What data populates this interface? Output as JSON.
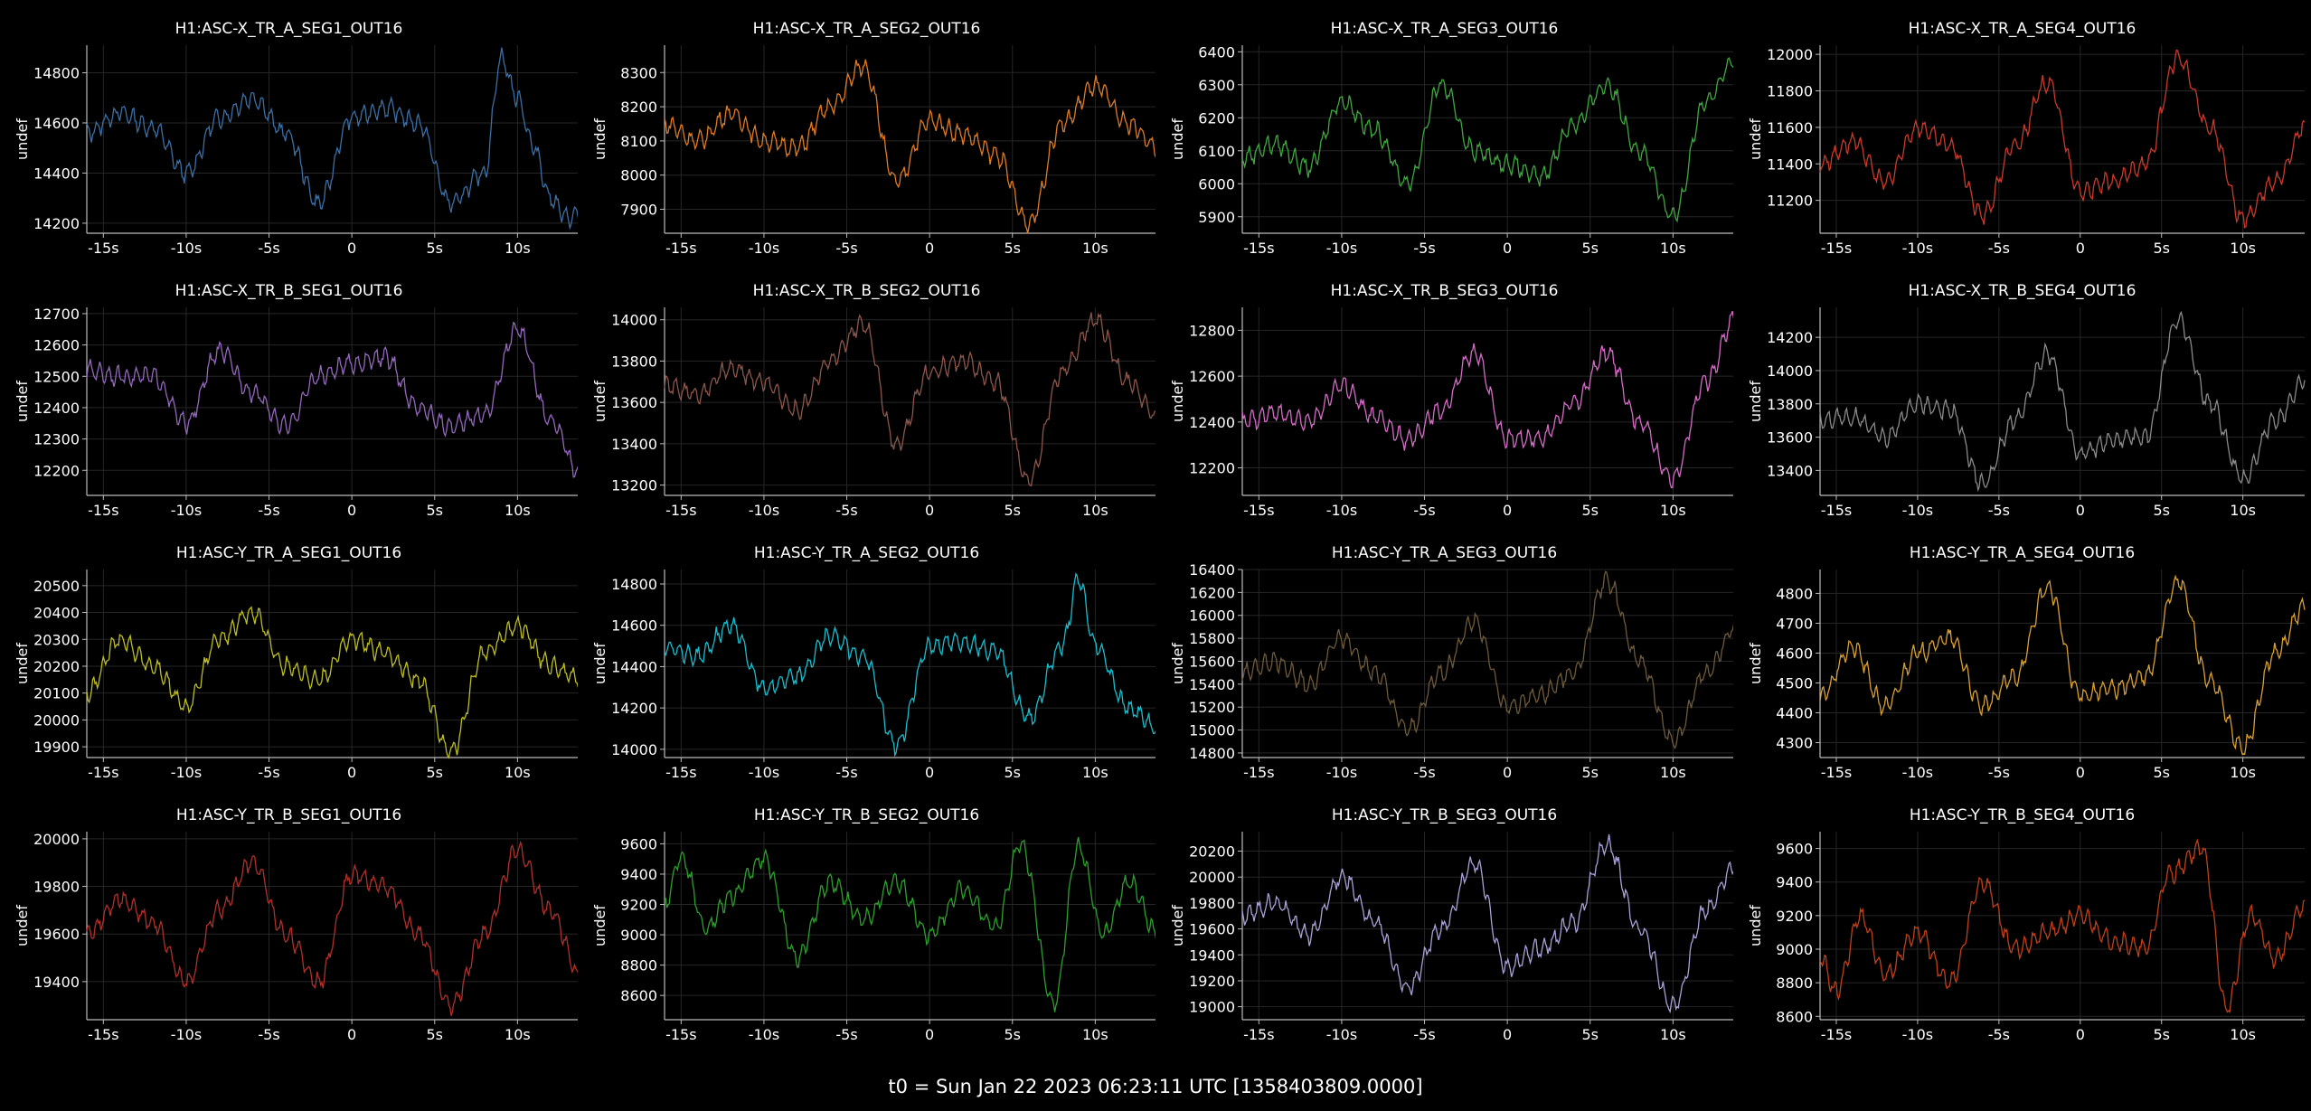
{
  "footer": "t0 = Sun Jan 22 2023 06:23:11 UTC [1358403809.0000]",
  "chart_data": [
    {
      "type": "line",
      "title": "H1:ASC-X_TR_A_SEG1_OUT16",
      "ylabel": "undef",
      "color": "#3b6fa5",
      "xlim": [
        -16,
        13.8
      ],
      "ylim": [
        14160,
        14910
      ],
      "yticks": [
        14200,
        14400,
        14600,
        14800
      ],
      "xticks": [
        "-15s",
        "-10s",
        "-5s",
        "0",
        "5s",
        "10s"
      ],
      "series": [
        {
          "x": [
            -16,
            -14,
            -12,
            -10,
            -8,
            -6,
            -4,
            -2,
            0,
            2,
            4,
            6,
            8,
            9,
            10,
            11,
            12,
            13,
            13.8
          ],
          "y": [
            14560,
            14640,
            14580,
            14400,
            14620,
            14700,
            14560,
            14280,
            14620,
            14660,
            14600,
            14280,
            14400,
            14860,
            14700,
            14500,
            14300,
            14220,
            14240
          ]
        }
      ]
    },
    {
      "type": "line",
      "title": "H1:ASC-X_TR_A_SEG2_OUT16",
      "ylabel": "undef",
      "color": "#e07b22",
      "xlim": [
        -16,
        13.8
      ],
      "ylim": [
        7830,
        8380
      ],
      "yticks": [
        7900,
        8000,
        8100,
        8200,
        8300
      ],
      "xticks": [
        "-15s",
        "-10s",
        "-5s",
        "0",
        "5s",
        "10s"
      ],
      "series": [
        {
          "x": [
            -16,
            -14,
            -12,
            -10,
            -8,
            -6,
            -4,
            -2,
            0,
            2,
            4,
            6,
            8,
            10,
            12,
            13.8
          ],
          "y": [
            8150,
            8100,
            8180,
            8100,
            8080,
            8200,
            8320,
            7980,
            8160,
            8120,
            8060,
            7860,
            8150,
            8260,
            8150,
            8080
          ]
        }
      ]
    },
    {
      "type": "line",
      "title": "H1:ASC-X_TR_A_SEG3_OUT16",
      "ylabel": "undef",
      "color": "#3fa83f",
      "xlim": [
        -16,
        13.8
      ],
      "ylim": [
        5850,
        6420
      ],
      "yticks": [
        5900,
        6000,
        6100,
        6200,
        6300,
        6400
      ],
      "xticks": [
        "-15s",
        "-10s",
        "-5s",
        "0",
        "5s",
        "10s"
      ],
      "series": [
        {
          "x": [
            -16,
            -14,
            -12,
            -10,
            -8,
            -6,
            -4,
            -2,
            0,
            2,
            4,
            6,
            8,
            10,
            12,
            13.8
          ],
          "y": [
            6080,
            6120,
            6050,
            6250,
            6160,
            6000,
            6300,
            6100,
            6060,
            6020,
            6180,
            6300,
            6100,
            5900,
            6250,
            6380
          ]
        }
      ]
    },
    {
      "type": "line",
      "title": "H1:ASC-X_TR_A_SEG4_OUT16",
      "ylabel": "undef",
      "color": "#c83a2c",
      "xlim": [
        -16,
        13.8
      ],
      "ylim": [
        11020,
        12050
      ],
      "yticks": [
        11200,
        11400,
        11600,
        11800,
        12000
      ],
      "xticks": [
        "-15s",
        "-10s",
        "-5s",
        "0",
        "5s",
        "10s"
      ],
      "series": [
        {
          "x": [
            -16,
            -14,
            -12,
            -10,
            -8,
            -6,
            -4,
            -2,
            0,
            2,
            4,
            6,
            8,
            10,
            12,
            13.8
          ],
          "y": [
            11400,
            11520,
            11300,
            11600,
            11500,
            11120,
            11500,
            11850,
            11250,
            11300,
            11400,
            11980,
            11600,
            11100,
            11300,
            11600
          ]
        }
      ]
    },
    {
      "type": "line",
      "title": "H1:ASC-X_TR_B_SEG1_OUT16",
      "ylabel": "undef",
      "color": "#9467bd",
      "xlim": [
        -16,
        13.8
      ],
      "ylim": [
        12120,
        12720
      ],
      "yticks": [
        12200,
        12300,
        12400,
        12500,
        12600,
        12700
      ],
      "xticks": [
        "-15s",
        "-10s",
        "-5s",
        "0",
        "5s",
        "10s"
      ],
      "series": [
        {
          "x": [
            -16,
            -14,
            -12,
            -10,
            -8,
            -6,
            -4,
            -2,
            0,
            2,
            4,
            6,
            8,
            10,
            12,
            13.8
          ],
          "y": [
            12520,
            12500,
            12500,
            12350,
            12580,
            12450,
            12340,
            12500,
            12540,
            12560,
            12400,
            12340,
            12380,
            12650,
            12360,
            12180
          ]
        }
      ]
    },
    {
      "type": "line",
      "title": "H1:ASC-X_TR_B_SEG2_OUT16",
      "ylabel": "undef",
      "color": "#8c564b",
      "xlim": [
        -16,
        13.8
      ],
      "ylim": [
        13150,
        14060
      ],
      "yticks": [
        13200,
        13400,
        13600,
        13800,
        14000
      ],
      "xticks": [
        "-15s",
        "-10s",
        "-5s",
        "0",
        "5s",
        "10s"
      ],
      "series": [
        {
          "x": [
            -16,
            -14,
            -12,
            -10,
            -8,
            -6,
            -4,
            -2,
            0,
            2,
            4,
            6,
            8,
            10,
            12,
            13.8
          ],
          "y": [
            13680,
            13640,
            13760,
            13700,
            13560,
            13800,
            13980,
            13400,
            13750,
            13800,
            13700,
            13220,
            13750,
            14000,
            13700,
            13520
          ]
        }
      ]
    },
    {
      "type": "line",
      "title": "H1:ASC-X_TR_B_SEG3_OUT16",
      "ylabel": "undef",
      "color": "#d56bc7",
      "xlim": [
        -16,
        13.8
      ],
      "ylim": [
        12080,
        12900
      ],
      "yticks": [
        12200,
        12400,
        12600,
        12800
      ],
      "xticks": [
        "-15s",
        "-10s",
        "-5s",
        "0",
        "5s",
        "10s"
      ],
      "series": [
        {
          "x": [
            -16,
            -14,
            -12,
            -10,
            -8,
            -6,
            -4,
            -2,
            0,
            2,
            4,
            6,
            8,
            10,
            12,
            13.8
          ],
          "y": [
            12400,
            12440,
            12400,
            12560,
            12420,
            12320,
            12450,
            12700,
            12330,
            12330,
            12480,
            12700,
            12400,
            12150,
            12580,
            12860
          ]
        }
      ]
    },
    {
      "type": "line",
      "title": "H1:ASC-X_TR_B_SEG4_OUT16",
      "ylabel": "undef",
      "color": "#8a8a8a",
      "xlim": [
        -16,
        13.8
      ],
      "ylim": [
        13250,
        14380
      ],
      "yticks": [
        13400,
        13600,
        13800,
        14000,
        14200
      ],
      "xticks": [
        "-15s",
        "-10s",
        "-5s",
        "0",
        "5s",
        "10s"
      ],
      "series": [
        {
          "x": [
            -16,
            -14,
            -12,
            -10,
            -8,
            -6,
            -4,
            -2,
            0,
            2,
            4,
            6,
            8,
            10,
            12,
            13.8
          ],
          "y": [
            13700,
            13720,
            13600,
            13800,
            13760,
            13320,
            13700,
            14100,
            13500,
            13580,
            13600,
            14300,
            13800,
            13350,
            13700,
            13940
          ]
        }
      ]
    },
    {
      "type": "line",
      "title": "H1:ASC-Y_TR_A_SEG1_OUT16",
      "ylabel": "undef",
      "color": "#bcbd22",
      "xlim": [
        -16,
        13.8
      ],
      "ylim": [
        19860,
        20560
      ],
      "yticks": [
        19900,
        20000,
        20100,
        20200,
        20300,
        20400,
        20500
      ],
      "xticks": [
        "-15s",
        "-10s",
        "-5s",
        "0",
        "5s",
        "10s"
      ],
      "series": [
        {
          "x": [
            -16,
            -14,
            -12,
            -10,
            -8,
            -6,
            -4,
            -2,
            0,
            2,
            4,
            6,
            8,
            10,
            12,
            13.8
          ],
          "y": [
            20100,
            20300,
            20200,
            20050,
            20300,
            20400,
            20200,
            20150,
            20300,
            20250,
            20150,
            19880,
            20250,
            20350,
            20200,
            20150
          ]
        }
      ]
    },
    {
      "type": "line",
      "title": "H1:ASC-Y_TR_A_SEG2_OUT16",
      "ylabel": "undef",
      "color": "#17becf",
      "xlim": [
        -16,
        13.8
      ],
      "ylim": [
        13960,
        14870
      ],
      "yticks": [
        14000,
        14200,
        14400,
        14600,
        14800
      ],
      "xticks": [
        "-15s",
        "-10s",
        "-5s",
        "0",
        "5s",
        "10s"
      ],
      "series": [
        {
          "x": [
            -16,
            -14,
            -12,
            -10,
            -8,
            -6,
            -4,
            -2,
            0,
            2,
            4,
            6,
            8,
            9,
            10,
            12,
            13.8
          ],
          "y": [
            14500,
            14450,
            14600,
            14300,
            14350,
            14550,
            14450,
            14020,
            14500,
            14520,
            14480,
            14150,
            14500,
            14820,
            14500,
            14200,
            14100
          ]
        }
      ]
    },
    {
      "type": "line",
      "title": "H1:ASC-Y_TR_A_SEG3_OUT16",
      "ylabel": "undef",
      "color": "#6e5a3a",
      "xlim": [
        -16,
        13.8
      ],
      "ylim": [
        14760,
        16400
      ],
      "yticks": [
        14800,
        15000,
        15200,
        15400,
        15600,
        15800,
        16000,
        16200,
        16400
      ],
      "xticks": [
        "-15s",
        "-10s",
        "-5s",
        "0",
        "5s",
        "10s"
      ],
      "series": [
        {
          "x": [
            -16,
            -14,
            -12,
            -10,
            -8,
            -6,
            -4,
            -2,
            0,
            2,
            4,
            6,
            8,
            10,
            12,
            13.8
          ],
          "y": [
            15500,
            15600,
            15400,
            15800,
            15500,
            15000,
            15500,
            15950,
            15200,
            15300,
            15500,
            16300,
            15600,
            14900,
            15500,
            15900
          ]
        }
      ]
    },
    {
      "type": "line",
      "title": "H1:ASC-Y_TR_A_SEG4_OUT16",
      "ylabel": "undef",
      "color": "#d9a030",
      "xlim": [
        -16,
        13.8
      ],
      "ylim": [
        4250,
        4880
      ],
      "yticks": [
        4300,
        4400,
        4500,
        4600,
        4700,
        4800
      ],
      "xticks": [
        "-15s",
        "-10s",
        "-5s",
        "0",
        "5s",
        "10s"
      ],
      "series": [
        {
          "x": [
            -16,
            -14,
            -12,
            -10,
            -8,
            -6,
            -4,
            -2,
            0,
            2,
            4,
            6,
            8,
            10,
            12,
            13.8
          ],
          "y": [
            4450,
            4620,
            4420,
            4600,
            4650,
            4420,
            4520,
            4820,
            4460,
            4480,
            4520,
            4840,
            4500,
            4280,
            4600,
            4750
          ]
        }
      ]
    },
    {
      "type": "line",
      "title": "H1:ASC-Y_TR_B_SEG1_OUT16",
      "ylabel": "undef",
      "color": "#b0302a",
      "xlim": [
        -16,
        13.8
      ],
      "ylim": [
        19240,
        20030
      ],
      "yticks": [
        19400,
        19600,
        19800,
        20000
      ],
      "xticks": [
        "-15s",
        "-10s",
        "-5s",
        "0",
        "5s",
        "10s"
      ],
      "series": [
        {
          "x": [
            -16,
            -14,
            -12,
            -10,
            -8,
            -6,
            -4,
            -2,
            0,
            2,
            4,
            6,
            8,
            10,
            12,
            13.8
          ],
          "y": [
            19600,
            19750,
            19650,
            19400,
            19700,
            19900,
            19600,
            19400,
            19850,
            19800,
            19600,
            19300,
            19600,
            19950,
            19700,
            19420
          ]
        }
      ]
    },
    {
      "type": "line",
      "title": "H1:ASC-Y_TR_B_SEG2_OUT16",
      "ylabel": "undef",
      "color": "#2ca02c",
      "xlim": [
        -16,
        13.8
      ],
      "ylim": [
        8440,
        9680
      ],
      "yticks": [
        8600,
        8800,
        9000,
        9200,
        9400,
        9600
      ],
      "xticks": [
        "-15s",
        "-10s",
        "-5s",
        "0",
        "5s",
        "10s"
      ],
      "series": [
        {
          "x": [
            -16,
            -15,
            -13.5,
            -12,
            -10,
            -8,
            -6,
            -4,
            -2,
            0,
            2,
            4,
            5.5,
            7.5,
            9,
            10.5,
            12,
            13.8
          ],
          "y": [
            9200,
            9520,
            9050,
            9250,
            9500,
            8850,
            9350,
            9100,
            9350,
            9000,
            9300,
            9050,
            9600,
            8550,
            9580,
            9000,
            9350,
            9000
          ]
        }
      ]
    },
    {
      "type": "line",
      "title": "H1:ASC-Y_TR_B_SEG3_OUT16",
      "ylabel": "undef",
      "color": "#aaa0d8",
      "xlim": [
        -16,
        13.8
      ],
      "ylim": [
        18900,
        20350
      ],
      "yticks": [
        19000,
        19200,
        19400,
        19600,
        19800,
        20000,
        20200
      ],
      "xticks": [
        "-15s",
        "-10s",
        "-5s",
        "0",
        "5s",
        "10s"
      ],
      "series": [
        {
          "x": [
            -16,
            -14,
            -12,
            -10,
            -8,
            -6,
            -4,
            -2,
            0,
            2,
            4,
            6,
            8,
            10,
            12,
            13.8
          ],
          "y": [
            19700,
            19800,
            19550,
            20000,
            19650,
            19150,
            19600,
            20100,
            19300,
            19450,
            19650,
            20250,
            19600,
            19000,
            19750,
            20100
          ]
        }
      ]
    },
    {
      "type": "line",
      "title": "H1:ASC-Y_TR_B_SEG4_OUT16",
      "ylabel": "undef",
      "color": "#c0401a",
      "xlim": [
        -16,
        13.8
      ],
      "ylim": [
        8580,
        9700
      ],
      "yticks": [
        8600,
        8800,
        9000,
        9200,
        9400,
        9600
      ],
      "xticks": [
        "-15s",
        "-10s",
        "-5s",
        "0",
        "5s",
        "10s"
      ],
      "series": [
        {
          "x": [
            -16,
            -15,
            -13.5,
            -12,
            -10,
            -8,
            -6,
            -4,
            -2,
            0,
            2,
            4,
            5.5,
            7.5,
            9,
            10.5,
            12,
            13.8
          ],
          "y": [
            8950,
            8750,
            9200,
            8850,
            9100,
            8800,
            9400,
            9000,
            9100,
            9200,
            9050,
            9000,
            9450,
            9600,
            8650,
            9200,
            8950,
            9250
          ]
        }
      ]
    }
  ]
}
